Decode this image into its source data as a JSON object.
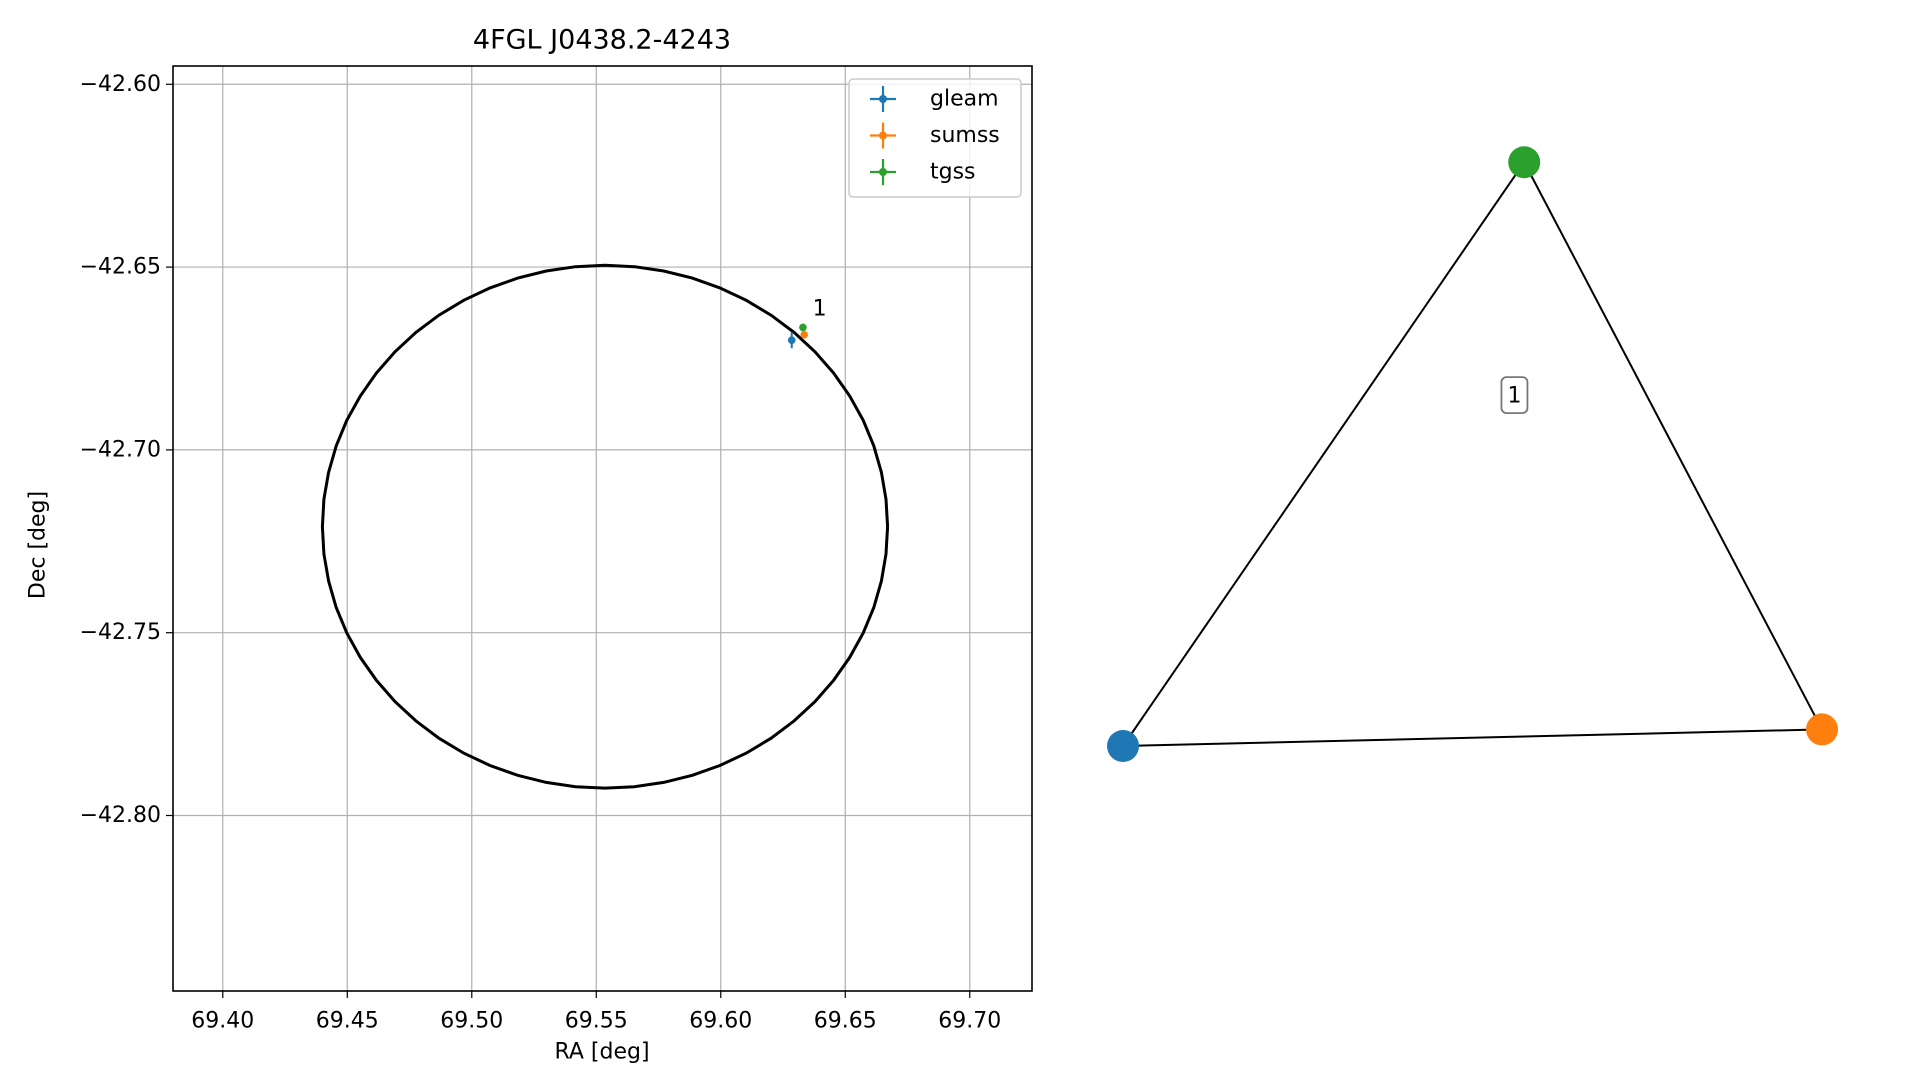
{
  "chart_data": [
    {
      "type": "scatter",
      "title": "4FGL J0438.2-4243",
      "xlabel": "RA [deg]",
      "ylabel": "Dec [deg]",
      "xlim": [
        69.38,
        69.725
      ],
      "ylim": [
        -42.848,
        -42.595
      ],
      "xticks": [
        69.4,
        69.45,
        69.5,
        69.55,
        69.6,
        69.65,
        69.7
      ],
      "xtick_labels": [
        "69.40",
        "69.45",
        "69.50",
        "69.55",
        "69.60",
        "69.65",
        "69.70"
      ],
      "yticks": [
        -42.6,
        -42.65,
        -42.7,
        -42.75,
        -42.8
      ],
      "ytick_labels": [
        "−42.60",
        "−42.65",
        "−42.70",
        "−42.75",
        "−42.80"
      ],
      "grid": true,
      "legend_position": "top-right",
      "series": [
        {
          "name": "gleam",
          "color": "#1f77b4",
          "points": [
            {
              "x": 69.6285,
              "y": -42.67,
              "xerr": 0.0015,
              "yerr": 0.0022
            }
          ]
        },
        {
          "name": "sumss",
          "color": "#ff7f0e",
          "points": [
            {
              "x": 69.6335,
              "y": -42.6685,
              "xerr": 0.001,
              "yerr": 0.001
            }
          ]
        },
        {
          "name": "tgss",
          "color": "#2ca02c",
          "points": [
            {
              "x": 69.633,
              "y": -42.6665,
              "xerr": 0.0008,
              "yerr": 0.001
            }
          ]
        }
      ],
      "ellipse": {
        "center_ra": 69.5535,
        "center_dec": -42.721,
        "semi_ra": 0.1135,
        "semi_dec": 0.0715,
        "color": "#000000"
      },
      "annotations": [
        {
          "text": "1",
          "x": 69.6345,
          "y": -42.665
        }
      ]
    },
    {
      "type": "network",
      "nodes": [
        {
          "id": "gleam",
          "color": "#1f77b4",
          "x": 0.0,
          "y": 0.0
        },
        {
          "id": "sumss",
          "color": "#ff7f0e",
          "x": 1.0,
          "y": 0.026
        },
        {
          "id": "tgss",
          "color": "#2ca02c",
          "x": 0.574,
          "y": 0.915
        }
      ],
      "edges": [
        [
          "gleam",
          "sumss"
        ],
        [
          "gleam",
          "tgss"
        ],
        [
          "sumss",
          "tgss"
        ]
      ],
      "cluster_labels": [
        {
          "text": "1",
          "x": 0.56,
          "y": 0.55
        }
      ]
    }
  ]
}
